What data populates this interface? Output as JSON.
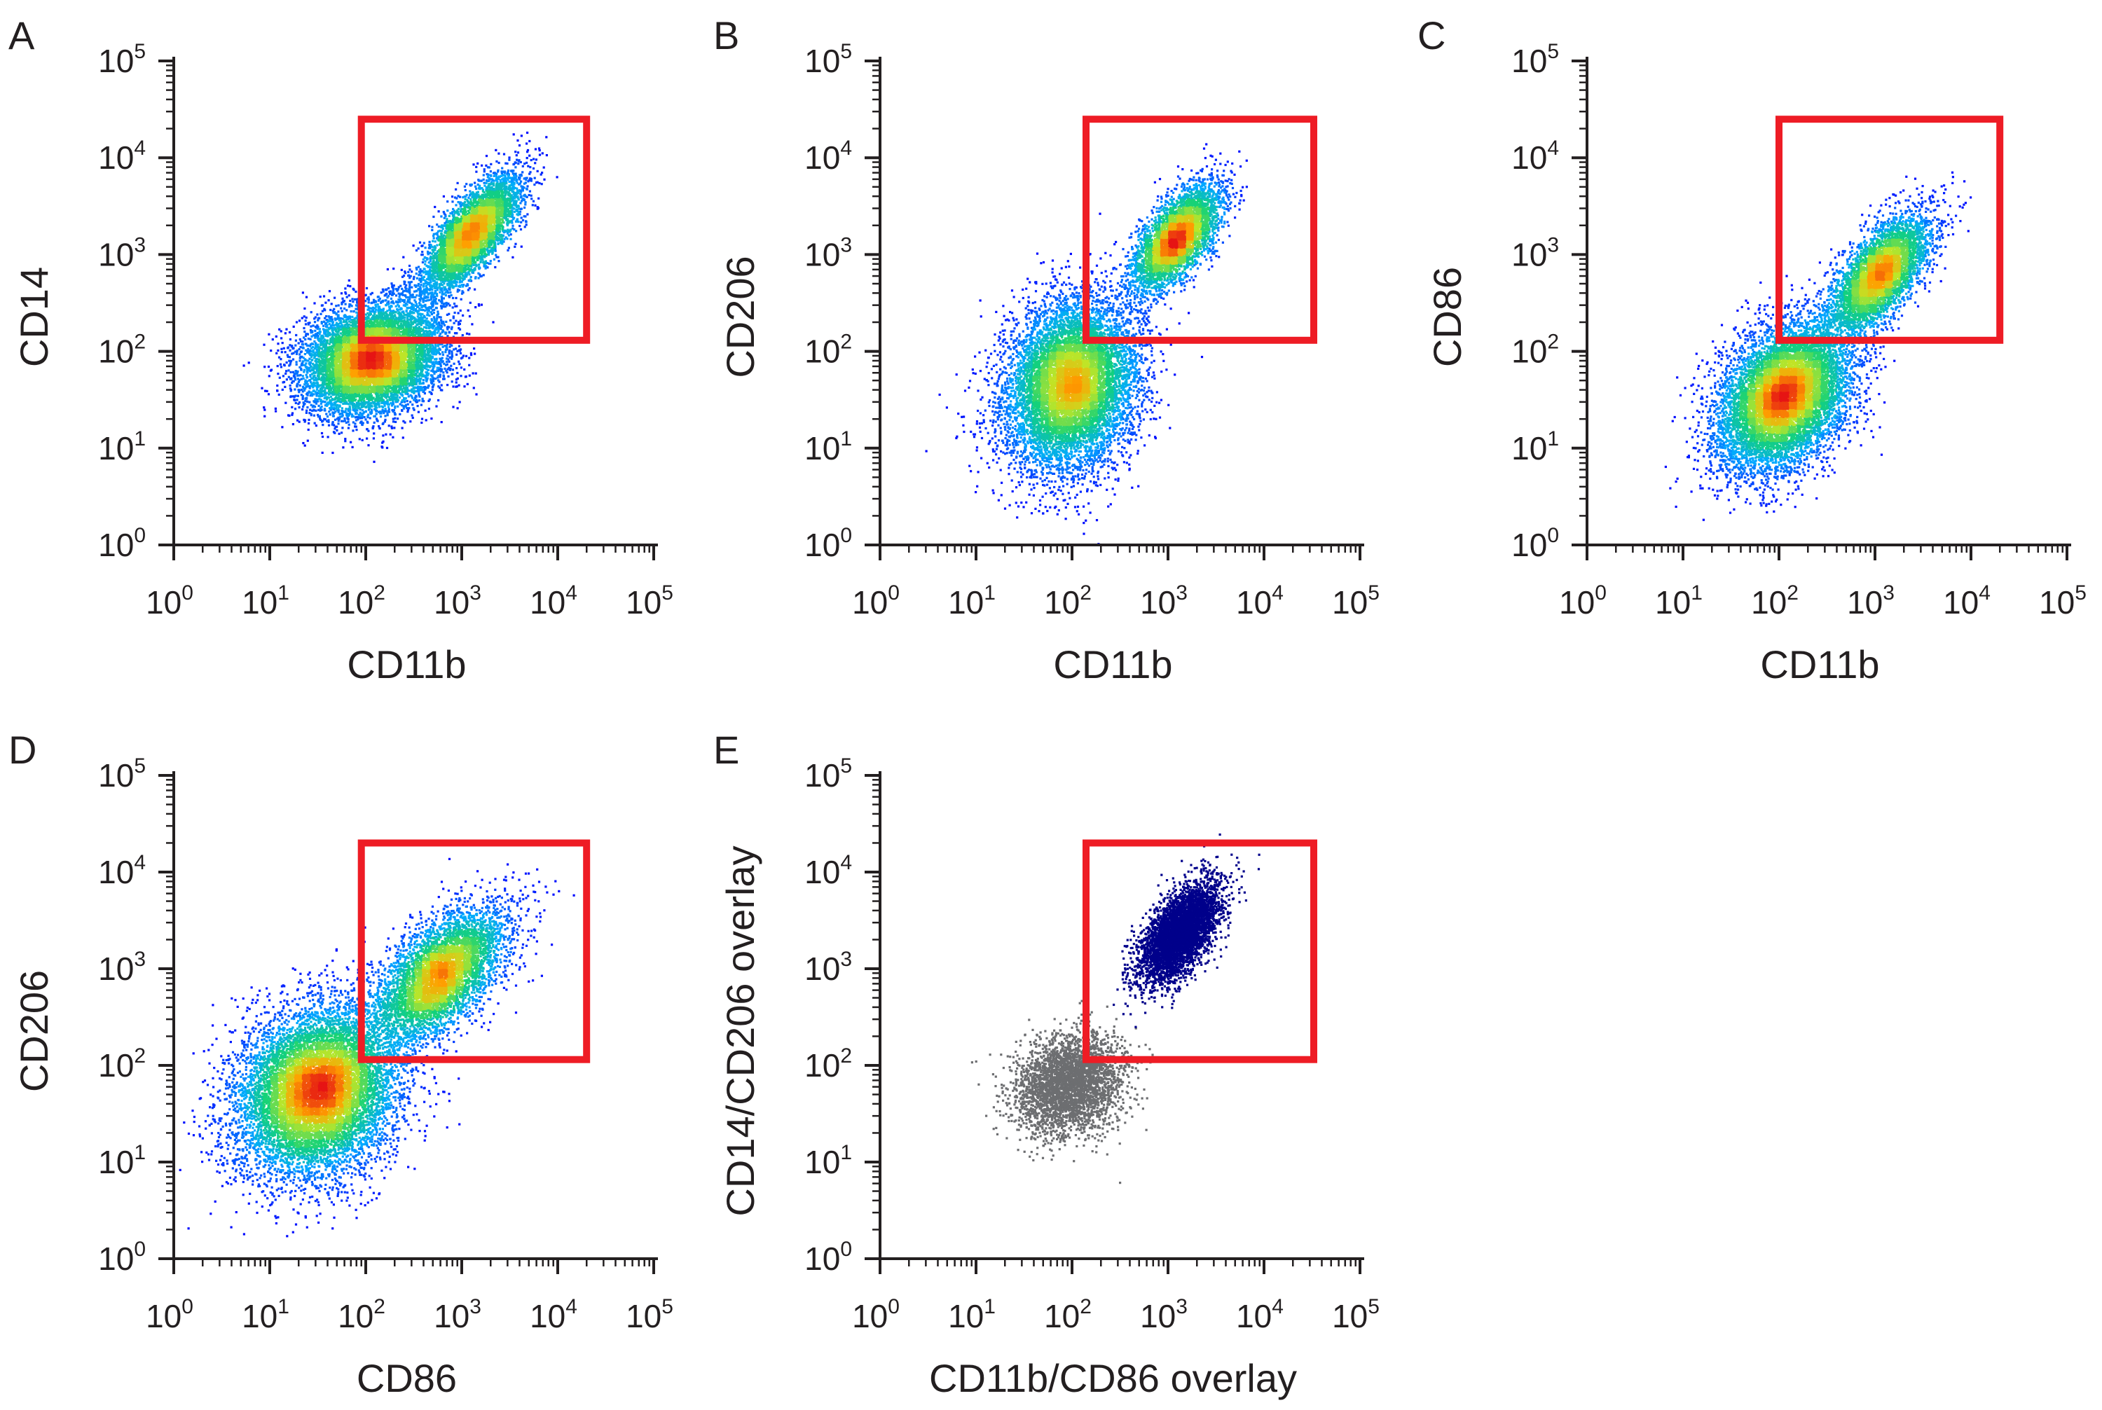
{
  "chart_data": [
    {
      "type": "scatter",
      "panel": "A",
      "xlabel": "CD11b",
      "ylabel": "CD14",
      "xscale": "log",
      "yscale": "log",
      "xlim": [
        1,
        100000
      ],
      "ylim": [
        1,
        100000
      ],
      "tick_labels": [
        "0",
        "1",
        "2",
        "3",
        "4",
        "5"
      ],
      "tick_base": "10",
      "colormap": "density",
      "grid": false,
      "gate": {
        "x": [
          90,
          20000
        ],
        "y": [
          130,
          25000
        ],
        "color": "#ee1c25"
      },
      "populations": [
        {
          "center": [
            115,
            85
          ],
          "spread": [
            2.3,
            1.9
          ],
          "count": 9000,
          "corr": 0.2
        },
        {
          "center": [
            1250,
            1700
          ],
          "spread": [
            1.8,
            2.0
          ],
          "count": 5000,
          "corr": 0.75
        }
      ]
    },
    {
      "type": "scatter",
      "panel": "B",
      "xlabel": "CD11b",
      "ylabel": "CD206",
      "xscale": "log",
      "yscale": "log",
      "xlim": [
        1,
        100000
      ],
      "ylim": [
        1,
        100000
      ],
      "tick_labels": [
        "0",
        "1",
        "2",
        "3",
        "4",
        "5"
      ],
      "tick_base": "10",
      "colormap": "density",
      "grid": false,
      "gate": {
        "x": [
          140,
          33000
        ],
        "y": [
          130,
          25000
        ],
        "color": "#ee1c25"
      },
      "populations": [
        {
          "center": [
            95,
            45
          ],
          "spread": [
            2.2,
            2.7
          ],
          "count": 9000,
          "corr": 0.15
        },
        {
          "center": [
            1200,
            1500
          ],
          "spread": [
            1.7,
            1.9
          ],
          "count": 4200,
          "corr": 0.65
        }
      ]
    },
    {
      "type": "scatter",
      "panel": "C",
      "xlabel": "CD11b",
      "ylabel": "CD86",
      "xscale": "log",
      "yscale": "log",
      "xlim": [
        1,
        100000
      ],
      "ylim": [
        1,
        100000
      ],
      "tick_labels": [
        "0",
        "1",
        "2",
        "3",
        "4",
        "5"
      ],
      "tick_base": "10",
      "colormap": "density",
      "grid": false,
      "gate": {
        "x": [
          100,
          20000
        ],
        "y": [
          130,
          25000
        ],
        "color": "#ee1c25"
      },
      "populations": [
        {
          "center": [
            110,
            35
          ],
          "spread": [
            2.2,
            2.4
          ],
          "count": 9000,
          "corr": 0.35
        },
        {
          "center": [
            1100,
            650
          ],
          "spread": [
            1.8,
            2.0
          ],
          "count": 4500,
          "corr": 0.65
        }
      ]
    },
    {
      "type": "scatter",
      "panel": "D",
      "xlabel": "CD86",
      "ylabel": "CD206",
      "xscale": "log",
      "yscale": "log",
      "xlim": [
        1,
        100000
      ],
      "ylim": [
        1,
        100000
      ],
      "tick_labels": [
        "0",
        "1",
        "2",
        "3",
        "4",
        "5"
      ],
      "tick_base": "10",
      "colormap": "density",
      "grid": false,
      "gate": {
        "x": [
          90,
          20000
        ],
        "y": [
          115,
          20000
        ],
        "color": "#ee1c25"
      },
      "populations": [
        {
          "center": [
            30,
            55
          ],
          "spread": [
            2.6,
            2.7
          ],
          "count": 10000,
          "corr": 0.2
        },
        {
          "center": [
            600,
            900
          ],
          "spread": [
            2.2,
            2.2
          ],
          "count": 5000,
          "corr": 0.6
        }
      ]
    },
    {
      "type": "scatter",
      "panel": "E",
      "xlabel": "CD11b/CD86 overlay",
      "ylabel": "CD14/CD206 overlay",
      "xscale": "log",
      "yscale": "log",
      "xlim": [
        1,
        100000
      ],
      "ylim": [
        1,
        100000
      ],
      "tick_labels": [
        "0",
        "1",
        "2",
        "3",
        "4",
        "5"
      ],
      "tick_base": "10",
      "colormap": "overlay",
      "grid": false,
      "gate": {
        "x": [
          140,
          33000
        ],
        "y": [
          115,
          20000
        ],
        "color": "#ee1c25"
      },
      "populations": [
        {
          "center": [
            90,
            65
          ],
          "spread": [
            1.9,
            1.8
          ],
          "count": 3500,
          "corr": 0.2,
          "color": "#6d6e71"
        },
        {
          "center": [
            1300,
            2400
          ],
          "spread": [
            1.6,
            1.8
          ],
          "count": 4500,
          "corr": 0.6,
          "color": "#00008b"
        }
      ]
    }
  ]
}
